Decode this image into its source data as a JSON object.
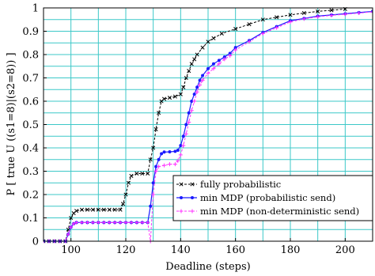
{
  "chart_data": {
    "type": "line",
    "title": "",
    "xlabel": "Deadline (steps)",
    "ylabel": "P [ true U ((s1=8)|(s2=8)) ]",
    "xlim": [
      90,
      210
    ],
    "ylim": [
      0,
      1
    ],
    "xticks": [
      100,
      120,
      140,
      160,
      180,
      200
    ],
    "yticks": [
      0,
      0.1,
      0.2,
      0.3,
      0.4,
      0.5,
      0.6,
      0.7,
      0.8,
      0.9,
      1
    ],
    "ytick_labels": [
      "0",
      "0.1",
      "0.2",
      "0.3",
      "0.4",
      "0.5",
      "0.6",
      "0.7",
      "0.8",
      "0.9",
      "1"
    ],
    "grid": true,
    "grid_color": "#3cc8c8",
    "legend_position": "bottom-right",
    "series": [
      {
        "name": "fully probabilistic",
        "color": "#000000",
        "marker": "x",
        "dashed": true,
        "points": [
          [
            90,
            0
          ],
          [
            92,
            0
          ],
          [
            94,
            0
          ],
          [
            96,
            0
          ],
          [
            98,
            0
          ],
          [
            99,
            0.05
          ],
          [
            100,
            0.1
          ],
          [
            101,
            0.12
          ],
          [
            102,
            0.13
          ],
          [
            104,
            0.135
          ],
          [
            106,
            0.135
          ],
          [
            108,
            0.135
          ],
          [
            110,
            0.135
          ],
          [
            112,
            0.135
          ],
          [
            114,
            0.135
          ],
          [
            116,
            0.135
          ],
          [
            118,
            0.135
          ],
          [
            119,
            0.16
          ],
          [
            120,
            0.2
          ],
          [
            121,
            0.25
          ],
          [
            122,
            0.28
          ],
          [
            124,
            0.29
          ],
          [
            126,
            0.29
          ],
          [
            128,
            0.29
          ],
          [
            129,
            0.35
          ],
          [
            130,
            0.4
          ],
          [
            131,
            0.48
          ],
          [
            132,
            0.55
          ],
          [
            133,
            0.6
          ],
          [
            134,
            0.61
          ],
          [
            136,
            0.615
          ],
          [
            138,
            0.62
          ],
          [
            140,
            0.63
          ],
          [
            141,
            0.66
          ],
          [
            142,
            0.7
          ],
          [
            143,
            0.73
          ],
          [
            144,
            0.76
          ],
          [
            145,
            0.78
          ],
          [
            146,
            0.8
          ],
          [
            148,
            0.83
          ],
          [
            150,
            0.855
          ],
          [
            152,
            0.87
          ],
          [
            155,
            0.89
          ],
          [
            160,
            0.91
          ],
          [
            165,
            0.93
          ],
          [
            170,
            0.95
          ],
          [
            175,
            0.96
          ],
          [
            180,
            0.97
          ],
          [
            185,
            0.978
          ],
          [
            190,
            0.985
          ],
          [
            195,
            0.99
          ],
          [
            200,
            0.995
          ]
        ]
      },
      {
        "name": "min MDP (probabilistic send)",
        "color": "#1a1aff",
        "marker": "dot",
        "dashed": false,
        "points": [
          [
            90,
            0
          ],
          [
            92,
            0
          ],
          [
            94,
            0
          ],
          [
            96,
            0
          ],
          [
            98,
            0
          ],
          [
            99,
            0.03
          ],
          [
            100,
            0.06
          ],
          [
            101,
            0.075
          ],
          [
            102,
            0.08
          ],
          [
            104,
            0.08
          ],
          [
            106,
            0.08
          ],
          [
            108,
            0.08
          ],
          [
            110,
            0.08
          ],
          [
            112,
            0.08
          ],
          [
            114,
            0.08
          ],
          [
            116,
            0.08
          ],
          [
            118,
            0.08
          ],
          [
            120,
            0.08
          ],
          [
            122,
            0.08
          ],
          [
            124,
            0.08
          ],
          [
            126,
            0.08
          ],
          [
            128,
            0.08
          ],
          [
            129,
            0.15
          ],
          [
            130,
            0.25
          ],
          [
            131,
            0.32
          ],
          [
            132,
            0.35
          ],
          [
            133,
            0.375
          ],
          [
            134,
            0.382
          ],
          [
            136,
            0.383
          ],
          [
            138,
            0.385
          ],
          [
            139,
            0.39
          ],
          [
            140,
            0.41
          ],
          [
            141,
            0.45
          ],
          [
            142,
            0.5
          ],
          [
            143,
            0.55
          ],
          [
            144,
            0.6
          ],
          [
            145,
            0.63
          ],
          [
            146,
            0.66
          ],
          [
            147,
            0.69
          ],
          [
            148,
            0.71
          ],
          [
            150,
            0.74
          ],
          [
            152,
            0.76
          ],
          [
            154,
            0.775
          ],
          [
            156,
            0.79
          ],
          [
            158,
            0.805
          ],
          [
            160,
            0.83
          ],
          [
            165,
            0.86
          ],
          [
            170,
            0.895
          ],
          [
            175,
            0.92
          ],
          [
            180,
            0.945
          ],
          [
            185,
            0.955
          ],
          [
            190,
            0.965
          ],
          [
            195,
            0.97
          ],
          [
            200,
            0.975
          ],
          [
            205,
            0.98
          ],
          [
            210,
            0.985
          ]
        ]
      },
      {
        "name": "min MDP (non-deterministic send)",
        "color": "#ff33ff",
        "marker": "plus",
        "dashed": true,
        "points": [
          [
            90,
            0
          ],
          [
            92,
            0
          ],
          [
            94,
            0
          ],
          [
            96,
            0
          ],
          [
            98,
            0
          ],
          [
            99,
            0.03
          ],
          [
            100,
            0.06
          ],
          [
            101,
            0.075
          ],
          [
            102,
            0.08
          ],
          [
            104,
            0.08
          ],
          [
            106,
            0.08
          ],
          [
            108,
            0.08
          ],
          [
            110,
            0.08
          ],
          [
            112,
            0.08
          ],
          [
            114,
            0.08
          ],
          [
            116,
            0.08
          ],
          [
            118,
            0.08
          ],
          [
            120,
            0.08
          ],
          [
            122,
            0.08
          ],
          [
            124,
            0.08
          ],
          [
            126,
            0.08
          ],
          [
            128,
            0.08
          ],
          [
            129,
            0
          ],
          [
            130,
            0.2
          ],
          [
            131,
            0.3
          ],
          [
            132,
            0.32
          ],
          [
            134,
            0.325
          ],
          [
            136,
            0.33
          ],
          [
            138,
            0.33
          ],
          [
            139,
            0.345
          ],
          [
            140,
            0.37
          ],
          [
            141,
            0.41
          ],
          [
            142,
            0.46
          ],
          [
            143,
            0.51
          ],
          [
            144,
            0.56
          ],
          [
            145,
            0.6
          ],
          [
            146,
            0.64
          ],
          [
            147,
            0.67
          ],
          [
            148,
            0.69
          ],
          [
            150,
            0.72
          ],
          [
            152,
            0.74
          ],
          [
            154,
            0.76
          ],
          [
            156,
            0.78
          ],
          [
            158,
            0.795
          ],
          [
            160,
            0.82
          ],
          [
            165,
            0.855
          ],
          [
            170,
            0.89
          ],
          [
            175,
            0.915
          ],
          [
            180,
            0.94
          ],
          [
            185,
            0.953
          ],
          [
            190,
            0.962
          ],
          [
            195,
            0.968
          ],
          [
            200,
            0.973
          ],
          [
            205,
            0.978
          ],
          [
            210,
            0.983
          ]
        ]
      }
    ]
  }
}
